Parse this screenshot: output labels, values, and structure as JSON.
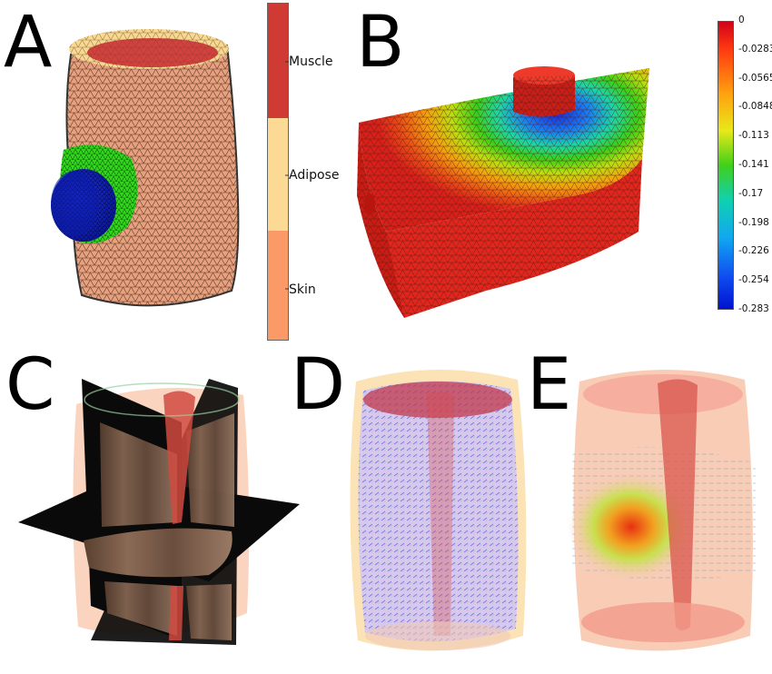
{
  "panels": {
    "a": "A",
    "b": "B",
    "c": "C",
    "d": "D",
    "e": "E"
  },
  "tissue_legend": {
    "items": [
      "Muscle",
      "Adipose",
      "Skin"
    ],
    "colors": {
      "muscle": "#cf3a35",
      "adipose": "#fdd996",
      "skin": "#fb9a66"
    }
  },
  "displacement_colorbar": {
    "ticks": [
      "0",
      "-0.0283",
      "-0.0565",
      "-0.0848",
      "-0.113",
      "-0.141",
      "-0.17",
      "-0.198",
      "-0.226",
      "-0.254",
      "-0.283"
    ],
    "range": [
      -0.283,
      0
    ]
  },
  "colors": {
    "mesh_skin": "#e9a07c",
    "indenter": "#1020c8",
    "contact_zone": "#35d41e",
    "mesh_red": "#e0261d"
  }
}
